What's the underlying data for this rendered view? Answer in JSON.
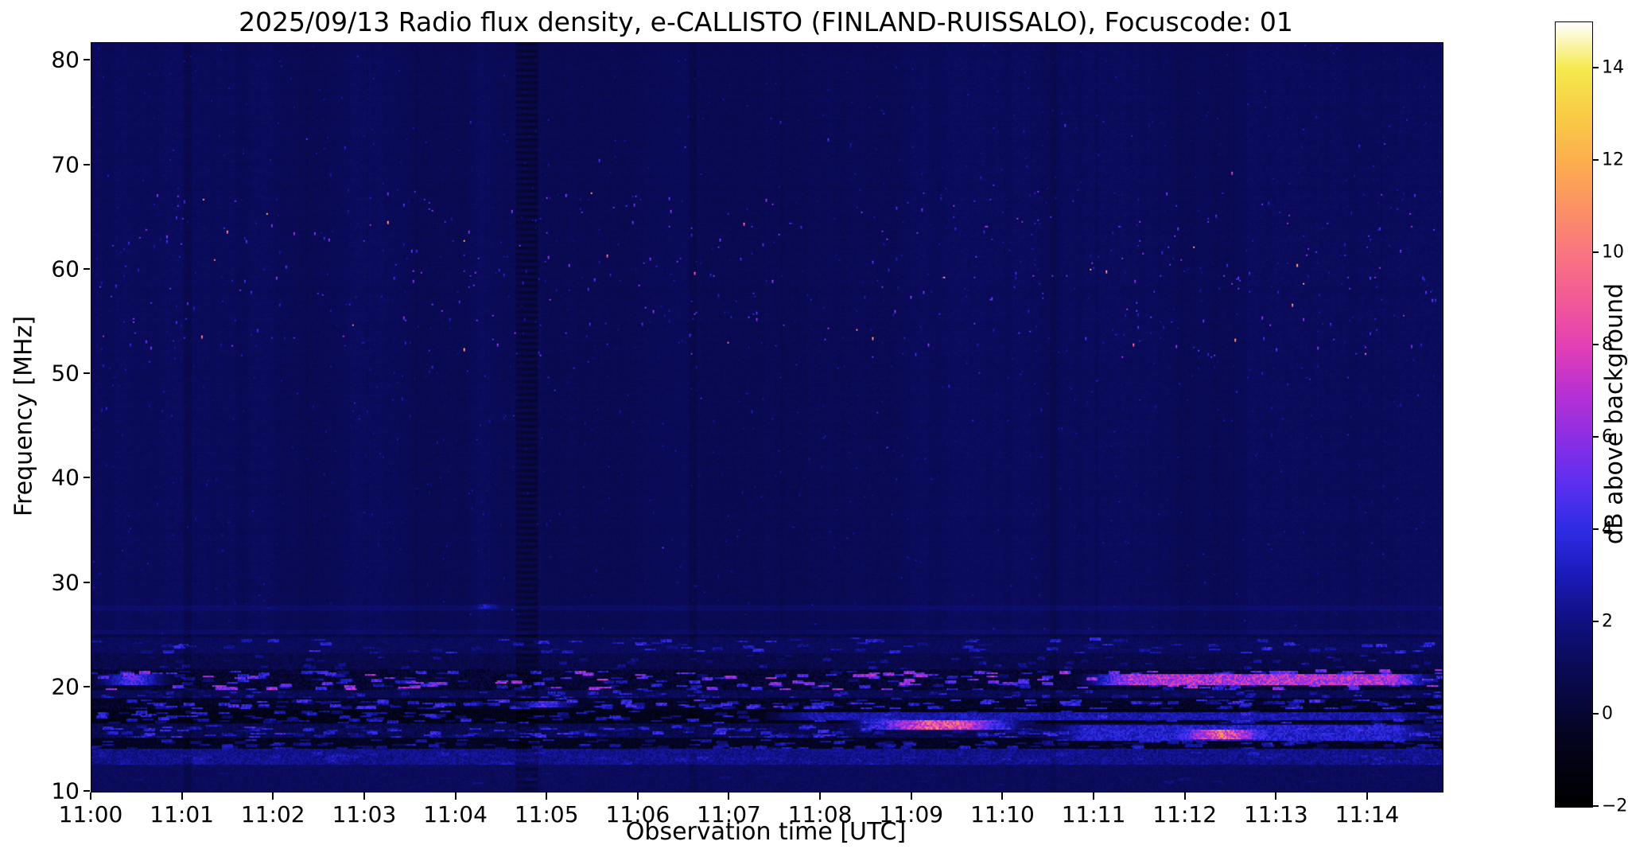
{
  "chart_data": {
    "type": "heatmap",
    "title": "2025/09/13  Radio flux density, e-CALLISTO (FINLAND-RUISSALO), Focuscode: 01",
    "xlabel": "Observation time [UTC]",
    "ylabel": "Frequency [MHz]",
    "colorbar_label": "dB above background",
    "x_tick_labels": [
      "11:00",
      "11:01",
      "11:02",
      "11:03",
      "11:04",
      "11:05",
      "11:06",
      "11:07",
      "11:08",
      "11:09",
      "11:10",
      "11:11",
      "11:12",
      "11:13",
      "11:14"
    ],
    "x_start_minutes": 0,
    "x_end_minutes": 14.82,
    "y_ticks": [
      10,
      20,
      30,
      40,
      50,
      60,
      70,
      80
    ],
    "y_range": [
      10,
      81.7
    ],
    "color_range": [
      -2,
      15
    ],
    "colorbar_ticks": [
      {
        "value": 14,
        "label": "14"
      },
      {
        "value": 12,
        "label": "12"
      },
      {
        "value": 10,
        "label": "10"
      },
      {
        "value": 8,
        "label": "8"
      },
      {
        "value": 6,
        "label": "6"
      },
      {
        "value": 4,
        "label": "4"
      },
      {
        "value": 2,
        "label": "2"
      },
      {
        "value": 0,
        "label": "0"
      },
      {
        "value": -2,
        "label": "−2"
      }
    ],
    "colormap_stops": [
      [
        -2.0,
        "#000000"
      ],
      [
        -0.5,
        "#04041f"
      ],
      [
        0.0,
        "#060633"
      ],
      [
        1.0,
        "#0a0a55"
      ],
      [
        2.0,
        "#101080"
      ],
      [
        3.0,
        "#1a1ab8"
      ],
      [
        4.0,
        "#2d2ce4"
      ],
      [
        5.0,
        "#5c2ff0"
      ],
      [
        6.0,
        "#8c2ee4"
      ],
      [
        7.0,
        "#b931d2"
      ],
      [
        8.0,
        "#e33fb4"
      ],
      [
        9.0,
        "#f25a96"
      ],
      [
        10.0,
        "#f97580"
      ],
      [
        11.0,
        "#fb9263"
      ],
      [
        12.0,
        "#fcae4e"
      ],
      [
        13.0,
        "#f8cc45"
      ],
      [
        14.0,
        "#f5e94e"
      ],
      [
        15.0,
        "#ffffff"
      ]
    ],
    "background_value": 1.05,
    "seed": 20250913,
    "bands": [
      {
        "f0": 23.2,
        "f1": 24.8,
        "base": 0.85,
        "noise": 0.6,
        "blobs": {
          "count": 95,
          "fc": 24.0,
          "fh": 0.7,
          "tw": 0.05,
          "vmin": 1.8,
          "vmax": 4.0
        }
      },
      {
        "f0": 21.7,
        "f1": 23.2,
        "base": 0.25,
        "noise": 0.9,
        "blobs": {
          "count": 70,
          "fc": 22.4,
          "fh": 0.6,
          "tw": 0.04,
          "vmin": 1.2,
          "vmax": 2.6
        }
      },
      {
        "f0": 19.7,
        "f1": 21.7,
        "base": -0.7,
        "noise": 1.5,
        "blobs": {
          "count": 280,
          "fc": 20.7,
          "fh": 0.9,
          "tw": 0.05,
          "vmin": 1.6,
          "vmax": 6.8
        }
      },
      {
        "f0": 18.9,
        "f1": 19.7,
        "base": 0.5,
        "noise": 0.9,
        "blobs": {
          "count": 120,
          "fc": 19.3,
          "fh": 0.35,
          "tw": 0.04,
          "vmin": 1.2,
          "vmax": 3.4
        }
      },
      {
        "f0": 17.8,
        "f1": 18.9,
        "base": -0.9,
        "noise": 1.3,
        "blobs": {
          "count": 210,
          "fc": 18.35,
          "fh": 0.5,
          "tw": 0.045,
          "vmin": 1.4,
          "vmax": 4.6
        }
      },
      {
        "f0": 16.5,
        "f1": 17.8,
        "base": -1.3,
        "noise": 1.1,
        "blobs": {
          "count": 170,
          "fc": 17.15,
          "fh": 0.55,
          "tw": 0.05,
          "vmin": 1.2,
          "vmax": 3.8
        }
      },
      {
        "f0": 15.1,
        "f1": 16.5,
        "base": 0.2,
        "noise": 1.3,
        "blobs": {
          "count": 230,
          "fc": 15.8,
          "fh": 0.6,
          "tw": 0.05,
          "vmin": 1.5,
          "vmax": 4.2
        }
      },
      {
        "f0": 14.0,
        "f1": 15.1,
        "base": -1.0,
        "noise": 1.1,
        "blobs": {
          "count": 150,
          "fc": 14.55,
          "fh": 0.45,
          "tw": 0.05,
          "vmin": 1.1,
          "vmax": 3.2
        }
      },
      {
        "f0": 12.5,
        "f1": 14.0,
        "base": 1.5,
        "noise": 1.3,
        "blobs": {
          "count": 160,
          "fc": 13.2,
          "fh": 0.6,
          "tw": 0.06,
          "vmin": 1.3,
          "vmax": 3.0
        }
      },
      {
        "f0": 10.0,
        "f1": 12.5,
        "base": 0.9,
        "noise": 0.5,
        "blobs": {
          "count": 45,
          "fc": 11.3,
          "fh": 0.6,
          "tw": 0.05,
          "vmin": 0.9,
          "vmax": 1.9
        }
      }
    ],
    "streaks": [
      {
        "t0": 10.8,
        "t1": 14.82,
        "f0": 20.25,
        "f1": 21.25,
        "value": 6.8,
        "soft": 0.6
      },
      {
        "t0": 0.0,
        "t1": 0.9,
        "f0": 20.3,
        "f1": 21.2,
        "value": 4.5,
        "soft": 0.4
      },
      {
        "t0": 7.4,
        "t1": 14.82,
        "f0": 16.9,
        "f1": 17.6,
        "value": 2.8,
        "soft": 0.5
      },
      {
        "t0": 8.25,
        "t1": 10.35,
        "f0": 15.95,
        "f1": 16.7,
        "value": 8.8,
        "soft": 0.9
      },
      {
        "t0": 10.4,
        "t1": 14.82,
        "f0": 14.9,
        "f1": 16.3,
        "value": 3.4,
        "soft": 0.5
      },
      {
        "t0": 11.65,
        "t1": 13.15,
        "f0": 15.1,
        "f1": 15.85,
        "value": 10.2,
        "soft": 0.8
      },
      {
        "t0": 4.55,
        "t1": 5.35,
        "f0": 18.15,
        "f1": 18.6,
        "value": 6.2,
        "soft": 0.5
      },
      {
        "t0": 4.1,
        "t1": 4.55,
        "f0": 27.55,
        "f1": 27.95,
        "value": 3.4,
        "soft": 0.25
      }
    ],
    "speck_fields": [
      {
        "count": 430,
        "t0": 0.1,
        "t1": 14.75,
        "f0": 51.5,
        "f1": 67.5,
        "vmin": 2.4,
        "vmax": 6.5,
        "bright_fraction": 0.07,
        "vbright": 9.5
      },
      {
        "count": 70,
        "t0": 0.1,
        "t1": 14.75,
        "f0": 45.5,
        "f1": 51.5,
        "vmin": 2.0,
        "vmax": 4.0,
        "bright_fraction": 0.02,
        "vbright": 6.0
      },
      {
        "count": 30,
        "t0": 0.1,
        "t1": 14.75,
        "f0": 67.5,
        "f1": 76.0,
        "vmin": 2.0,
        "vmax": 5.0,
        "bright_fraction": 0.05,
        "vbright": 8.0
      },
      {
        "count": 50,
        "t0": 0.1,
        "t1": 14.75,
        "f0": 28.5,
        "f1": 45.5,
        "vmin": 1.6,
        "vmax": 2.6,
        "bright_fraction": 0.01,
        "vbright": 4.0
      }
    ],
    "vertical_stripes": [
      {
        "t": 4.78,
        "halfwidth": 0.11,
        "dv": -0.6,
        "dotted": true
      },
      {
        "t": 1.06,
        "halfwidth": 0.035,
        "dv": -0.4,
        "dotted": false
      },
      {
        "t": 6.6,
        "halfwidth": 0.03,
        "dv": -0.3,
        "dotted": false
      },
      {
        "t": 10.55,
        "halfwidth": 0.025,
        "dv": -0.25,
        "dotted": false
      }
    ],
    "horizontal_lines": [
      {
        "f": 27.6,
        "df": 0.15,
        "dv": 0.45
      },
      {
        "f": 25.3,
        "df": 0.12,
        "dv": 0.3
      },
      {
        "f": 24.95,
        "df": 0.1,
        "dv": -0.5
      }
    ]
  }
}
